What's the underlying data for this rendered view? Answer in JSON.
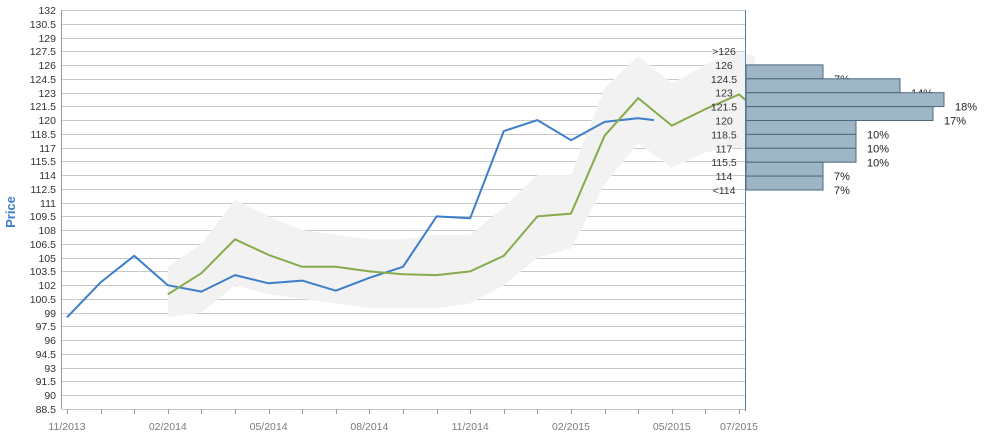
{
  "chart_data": {
    "type": "line",
    "ylabel": "Price",
    "ylim": [
      88.5,
      132
    ],
    "y_ticks": [
      "132",
      "130.5",
      "129",
      "127.5",
      "126",
      "124.5",
      "123",
      "121.5",
      "120",
      "118.5",
      "117",
      "115.5",
      "114",
      "112.5",
      "111",
      "109.5",
      "108",
      "106.5",
      "105",
      "103.5",
      "102",
      "100.5",
      "99",
      "97.5",
      "96",
      "94.5",
      "93",
      "91.5",
      "90",
      "88.5"
    ],
    "x_tick_labels": [
      "11/2013",
      "02/2014",
      "05/2014",
      "08/2014",
      "11/2014",
      "02/2015",
      "05/2015",
      "07/2015"
    ],
    "grid": true,
    "series": [
      {
        "color": "#3d7dca",
        "points": [
          [
            "2013-11",
            98.5
          ],
          [
            "2013-12",
            102.3
          ],
          [
            "2014-01",
            105.2
          ],
          [
            "2014-02",
            102.0
          ],
          [
            "2014-03",
            101.3
          ],
          [
            "2014-04",
            103.1
          ],
          [
            "2014-05",
            102.2
          ],
          [
            "2014-06",
            102.5
          ],
          [
            "2014-07",
            101.4
          ],
          [
            "2014-08",
            102.8
          ],
          [
            "2014-09",
            104.0
          ],
          [
            "2014-10",
            109.5
          ],
          [
            "2014-11",
            109.3
          ],
          [
            "2014-12",
            118.8
          ],
          [
            "2015-01",
            120.0
          ],
          [
            "2015-02",
            117.8
          ],
          [
            "2015-03",
            119.8
          ],
          [
            "2015-04",
            120.2
          ],
          [
            "2015-04-15",
            120.0
          ]
        ]
      },
      {
        "color": "#86ab4b",
        "points": [
          [
            "2014-02",
            101.0
          ],
          [
            "2014-03",
            103.3
          ],
          [
            "2014-04",
            107.0
          ],
          [
            "2014-05",
            105.3
          ],
          [
            "2014-06",
            104.0
          ],
          [
            "2014-07",
            104.0
          ],
          [
            "2014-08",
            103.5
          ],
          [
            "2014-09",
            103.2
          ],
          [
            "2014-10",
            103.1
          ],
          [
            "2014-11",
            103.5
          ],
          [
            "2014-12",
            105.2
          ],
          [
            "2015-01",
            109.5
          ],
          [
            "2015-02",
            109.8
          ],
          [
            "2015-03",
            118.3
          ],
          [
            "2015-04",
            122.4
          ],
          [
            "2015-05",
            119.4
          ],
          [
            "2015-06",
            121.2
          ],
          [
            "2015-07",
            122.8
          ],
          [
            "2015-07-15",
            121.3
          ]
        ]
      }
    ],
    "band": {
      "color": "#f2f2f2",
      "points": [
        [
          "2014-02",
          98.5,
          104.0
        ],
        [
          "2014-03",
          99.0,
          106.5
        ],
        [
          "2014-04",
          102.0,
          111.3
        ],
        [
          "2014-05",
          101.0,
          109.5
        ],
        [
          "2014-06",
          100.5,
          108.0
        ],
        [
          "2014-07",
          100.0,
          107.5
        ],
        [
          "2014-08",
          99.5,
          107.0
        ],
        [
          "2014-09",
          99.5,
          107.0
        ],
        [
          "2014-10",
          99.5,
          107.5
        ],
        [
          "2014-11",
          100.0,
          107.5
        ],
        [
          "2014-12",
          102.0,
          110.5
        ],
        [
          "2015-01",
          105.0,
          114.0
        ],
        [
          "2015-02",
          106.0,
          114.0
        ],
        [
          "2015-03",
          113.0,
          123.5
        ],
        [
          "2015-04",
          117.5,
          127.0
        ],
        [
          "2015-05",
          114.8,
          124.0
        ],
        [
          "2015-06",
          116.5,
          126.0
        ],
        [
          "2015-07",
          117.0,
          127.5
        ],
        [
          "2015-07-15",
          116.5,
          127.0
        ]
      ]
    },
    "histogram": {
      "color": "#9db5c4",
      "bins": [
        {
          "label": ">126",
          "pct": null
        },
        {
          "label": "126",
          "pct": 7,
          "pct_label": "7%"
        },
        {
          "label": "124.5",
          "pct": 14,
          "pct_label": "14%"
        },
        {
          "label": "123",
          "pct": 18,
          "pct_label": "18%"
        },
        {
          "label": "121.5",
          "pct": 17,
          "pct_label": "17%"
        },
        {
          "label": "120",
          "pct": 10,
          "pct_label": "10%"
        },
        {
          "label": "118.5",
          "pct": 10,
          "pct_label": "10%"
        },
        {
          "label": "117",
          "pct": 10,
          "pct_label": "10%"
        },
        {
          "label": "115.5",
          "pct": 7,
          "pct_label": "7%"
        },
        {
          "label": "114",
          "pct": 7,
          "pct_label": "7%"
        },
        {
          "label": "<114",
          "pct": null
        }
      ]
    }
  }
}
